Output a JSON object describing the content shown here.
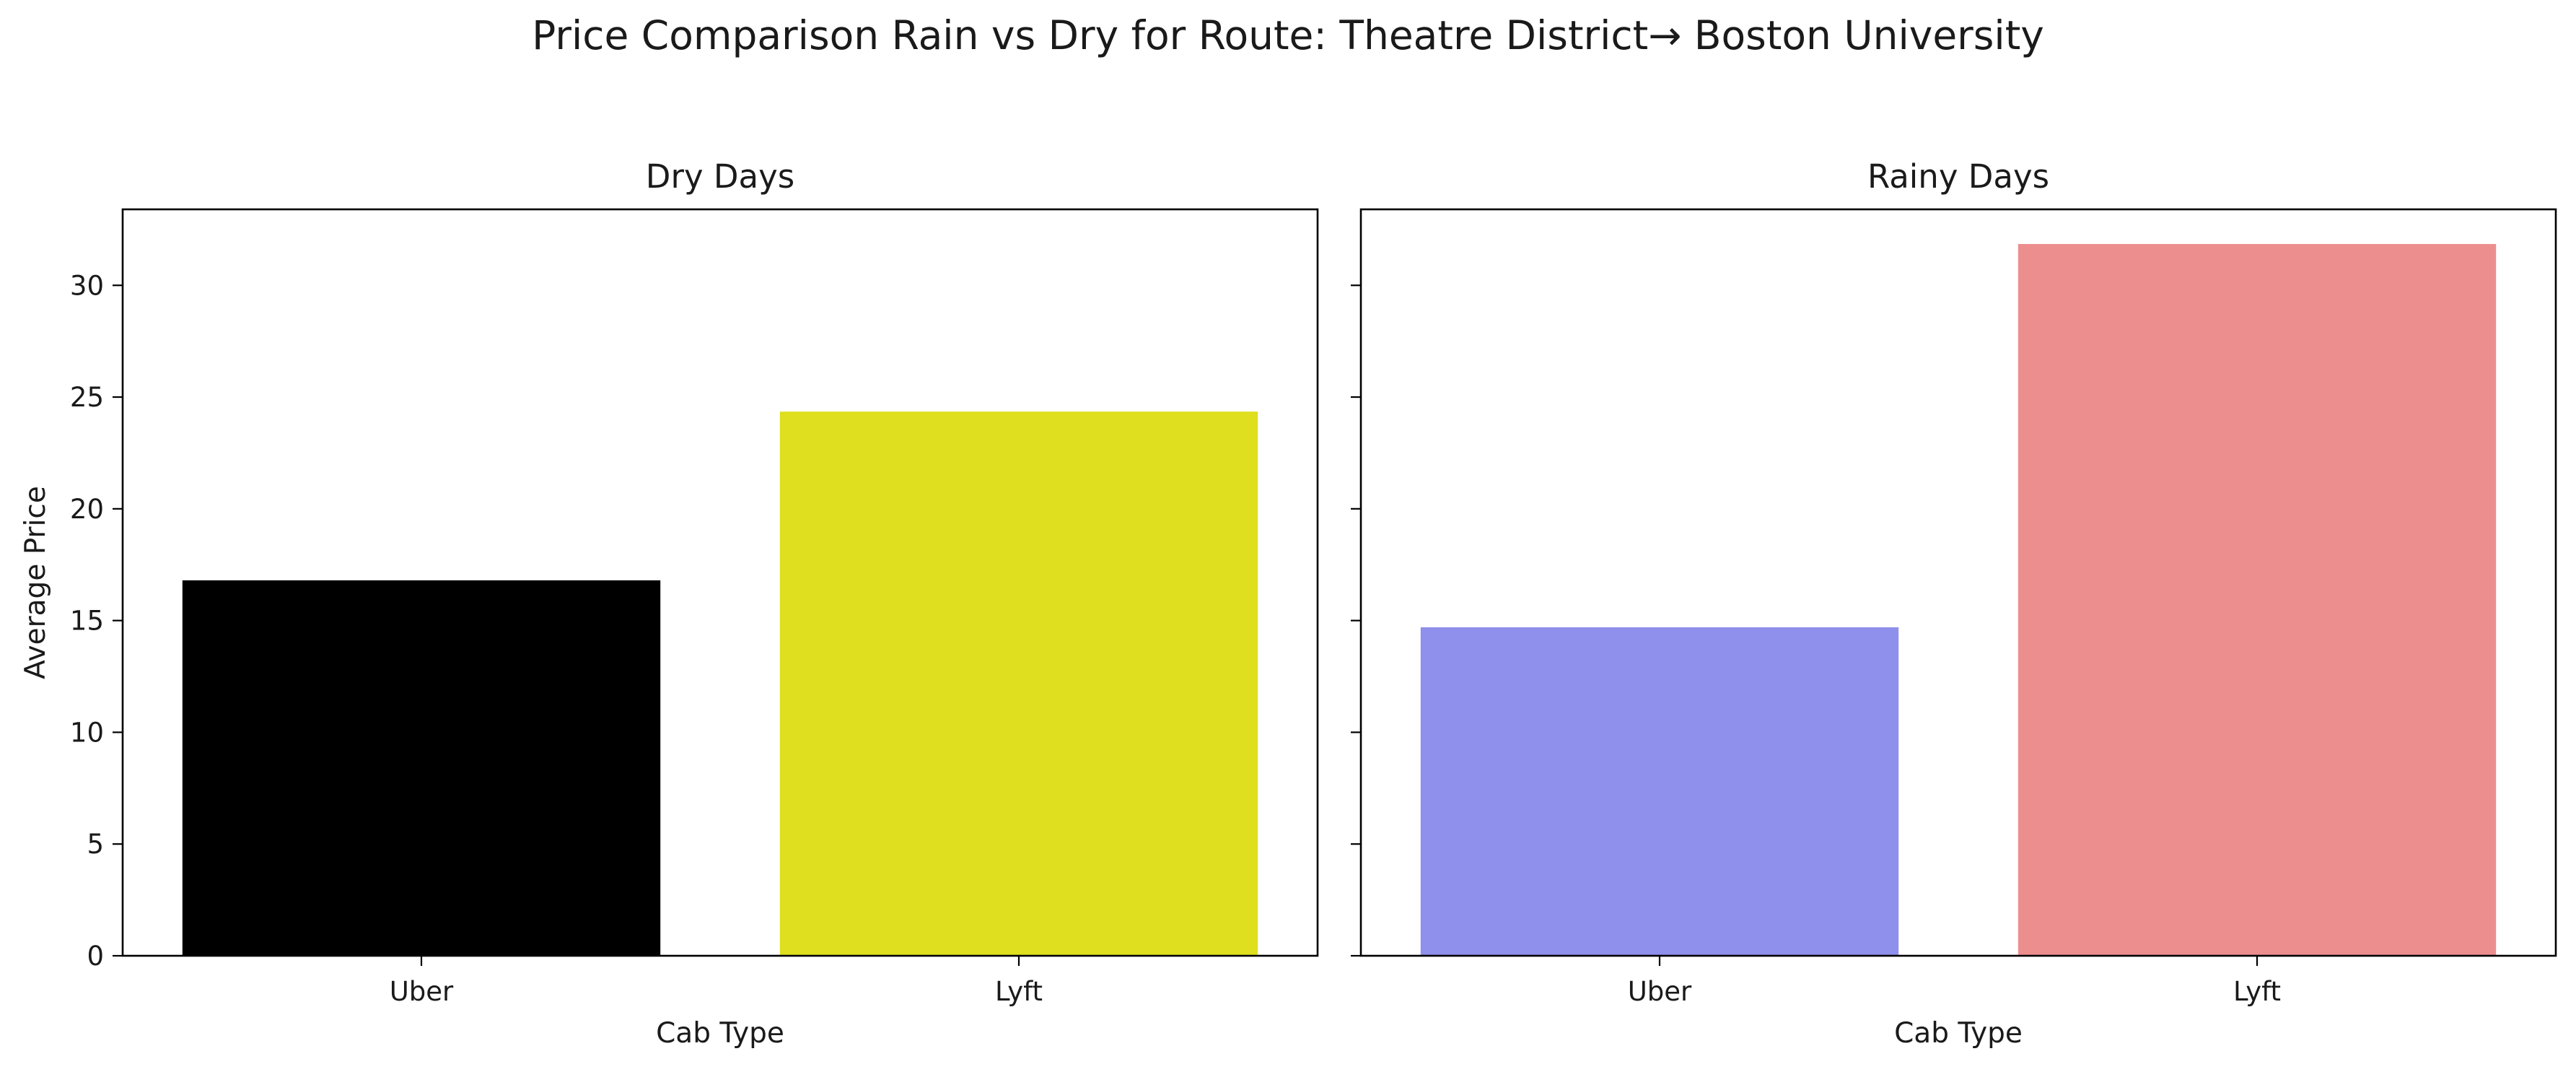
{
  "figure": {
    "title": "Price Comparison Rain vs Dry for Route: Theatre District→ Boston University"
  },
  "chart_data": [
    {
      "type": "bar",
      "title": "Dry Days",
      "categories": [
        "Uber",
        "Lyft"
      ],
      "values": [
        16.8,
        24.35
      ],
      "colors": [
        "#000000",
        "#dfdf1f"
      ],
      "xlabel": "Cab Type",
      "ylabel": "Average Price",
      "ylim": [
        0,
        33.4
      ],
      "yticks": [
        0,
        5,
        10,
        15,
        20,
        25,
        30
      ],
      "grid": false
    },
    {
      "type": "bar",
      "title": "Rainy Days",
      "categories": [
        "Uber",
        "Lyft"
      ],
      "values": [
        14.7,
        31.85
      ],
      "colors": [
        "#8f90eb",
        "#ed8e8e"
      ],
      "xlabel": "Cab Type",
      "ylabel": "",
      "ylim": [
        0,
        33.4
      ],
      "yticks": [
        0,
        5,
        10,
        15,
        20,
        25,
        30
      ],
      "grid": false
    }
  ]
}
